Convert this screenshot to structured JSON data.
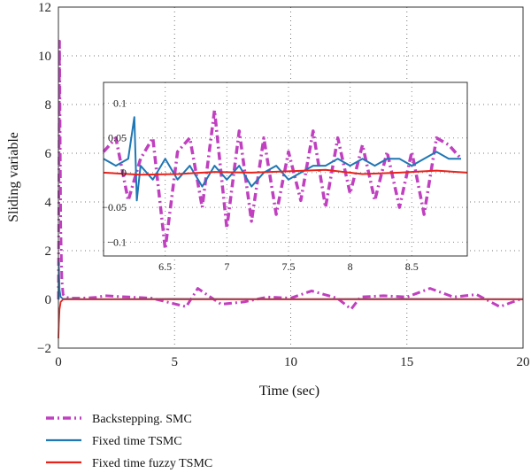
{
  "chart_data": {
    "type": "line",
    "xlabel": "Time (sec)",
    "ylabel": "Sliding variable",
    "xlim": [
      0,
      20
    ],
    "ylim": [
      -2,
      12
    ],
    "xticks": [
      "0",
      "5",
      "10",
      "15",
      "20"
    ],
    "yticks": [
      "−2",
      "0",
      "2",
      "4",
      "6",
      "8",
      "10",
      "12"
    ],
    "grid": true,
    "legend_position": "bottom-left, outside",
    "series": [
      {
        "name": "Backstepping. SMC",
        "color": "#c040c0",
        "style": "dash-dot",
        "x": [
          0,
          0.05,
          0.1,
          0.15,
          0.2,
          0.3,
          0.5,
          1,
          1.6,
          2,
          3,
          4,
          5.5,
          6,
          7,
          8,
          9,
          10,
          10.9,
          12,
          12.6,
          13,
          14,
          15,
          16,
          17,
          18,
          19,
          20
        ],
        "y": [
          0,
          10.6,
          3,
          0.8,
          0.2,
          0.1,
          0.05,
          0.05,
          0.08,
          0.15,
          0.1,
          0.05,
          -0.3,
          0.45,
          -0.2,
          -0.1,
          0.1,
          0.05,
          0.35,
          0.05,
          -0.4,
          0.1,
          0.15,
          0.1,
          0.45,
          0.1,
          0.2,
          -0.3,
          0.05
        ]
      },
      {
        "name": "Fixed time TSMC",
        "color": "#1f77b4",
        "style": "solid",
        "x": [
          0,
          0.02,
          0.05,
          0.1,
          0.2,
          0.5,
          1,
          5,
          10,
          15,
          20
        ],
        "y": [
          0,
          1.5,
          0.4,
          0.1,
          0.02,
          0.02,
          0.01,
          0.02,
          0.01,
          0.02,
          0.01
        ]
      },
      {
        "name": "Fixed time fuzzy TSMC",
        "color": "#e8231c",
        "style": "solid",
        "x": [
          0,
          0.02,
          0.05,
          0.1,
          0.2,
          0.5,
          1,
          5,
          10,
          15,
          20
        ],
        "y": [
          -1.6,
          -1.0,
          -0.4,
          -0.1,
          0,
          0,
          0,
          0,
          0,
          0,
          0
        ]
      }
    ],
    "inset": {
      "xlim": [
        6,
        8.95
      ],
      "ylim": [
        -0.12,
        0.13
      ],
      "xticks": [
        "6.5",
        "7",
        "7.5",
        "8",
        "8.5"
      ],
      "yticks": [
        "0.1",
        "0.05",
        "0",
        "−0.05",
        "−0.1"
      ],
      "series": [
        {
          "name": "Backstepping. SMC",
          "x": [
            6.0,
            6.1,
            6.2,
            6.3,
            6.4,
            6.5,
            6.6,
            6.7,
            6.8,
            6.9,
            7.0,
            7.1,
            7.2,
            7.3,
            7.4,
            7.5,
            7.6,
            7.7,
            7.8,
            7.9,
            8.0,
            8.1,
            8.2,
            8.3,
            8.4,
            8.5,
            8.6,
            8.7,
            8.8,
            8.9
          ],
          "y": [
            0.03,
            0.05,
            -0.04,
            0.02,
            0.05,
            -0.11,
            0.03,
            0.05,
            -0.05,
            0.09,
            -0.08,
            0.06,
            -0.07,
            0.05,
            -0.06,
            0.03,
            -0.04,
            0.06,
            -0.05,
            0.05,
            -0.03,
            0.04,
            -0.04,
            0.03,
            -0.05,
            0.03,
            -0.06,
            0.05,
            0.04,
            0.02
          ]
        },
        {
          "name": "Fixed time TSMC",
          "x": [
            6.0,
            6.1,
            6.2,
            6.25,
            6.27,
            6.3,
            6.4,
            6.5,
            6.6,
            6.7,
            6.8,
            6.9,
            7.0,
            7.1,
            7.2,
            7.3,
            7.4,
            7.5,
            7.6,
            7.7,
            7.8,
            7.9,
            8.0,
            8.1,
            8.2,
            8.3,
            8.4,
            8.5,
            8.6,
            8.7,
            8.8,
            8.9
          ],
          "y": [
            0.02,
            0.01,
            0.02,
            0.08,
            -0.04,
            0.01,
            -0.01,
            0.02,
            -0.01,
            0.01,
            -0.02,
            0.01,
            -0.01,
            0.01,
            -0.02,
            0.0,
            0.01,
            -0.01,
            0.0,
            0.01,
            0.01,
            0.02,
            0.01,
            0.02,
            0.01,
            0.02,
            0.02,
            0.01,
            0.02,
            0.03,
            0.02,
            0.02
          ]
        },
        {
          "name": "Fixed time fuzzy TSMC",
          "x": [
            6.0,
            6.3,
            6.6,
            6.9,
            7.2,
            7.5,
            7.8,
            8.1,
            8.4,
            8.7,
            8.95
          ],
          "y": [
            0.0,
            -0.003,
            -0.002,
            0.001,
            0.0,
            0.002,
            0.004,
            -0.002,
            0.0,
            0.003,
            0.0
          ]
        }
      ]
    }
  }
}
